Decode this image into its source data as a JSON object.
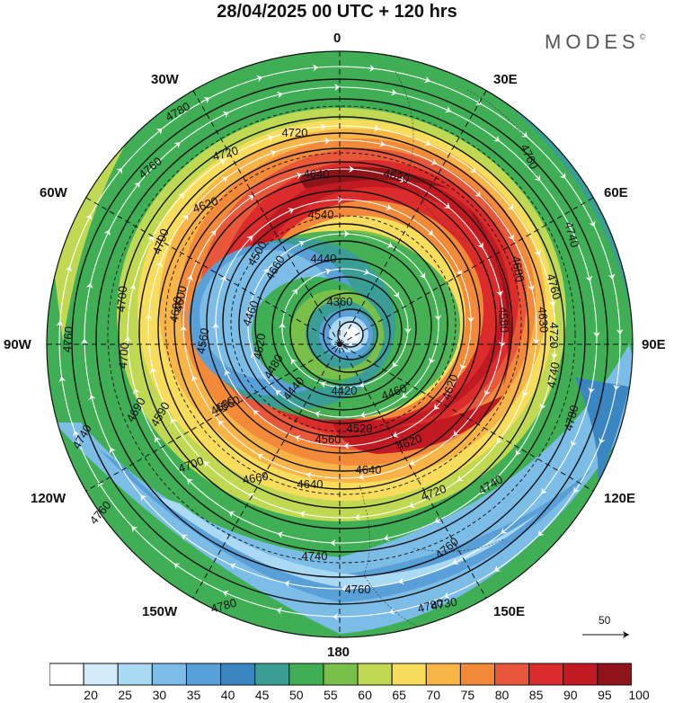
{
  "title": "28/04/2025  00 UTC  + 120 hrs",
  "brand": {
    "text": "MODES",
    "mark": "©"
  },
  "longitude_labels": {
    "n": "0",
    "ne": "30E",
    "ene": "60E",
    "e": "90E",
    "ese": "120E",
    "se": "150E",
    "s": "180",
    "sw": "150W",
    "wsw": "120W",
    "w": "90W",
    "wnw": "60W",
    "nw": "30W"
  },
  "map": {
    "projection": "polar-stereographic-south",
    "center_label": "",
    "contour_labels": [
      "4780",
      "4760",
      "4720",
      "4720",
      "4640",
      "4620",
      "4540",
      "4700",
      "4500",
      "4440",
      "4680",
      "4760",
      "4700",
      "4600",
      "4460",
      "4360",
      "4580",
      "4630",
      "4720",
      "4760",
      "4700",
      "4560",
      "4520",
      "4480",
      "4440",
      "4420",
      "4460",
      "4620",
      "4740",
      "4590",
      "4580",
      "4560",
      "4520",
      "4620",
      "4780",
      "4740",
      "4700",
      "4640",
      "4660",
      "4640",
      "4720",
      "4740",
      "4760",
      "4740",
      "4760",
      "4780",
      "4760",
      "4780",
      "4760",
      "4740",
      "4560",
      "4600",
      "4660",
      "4620",
      "4690",
      "4730"
    ],
    "colors": {
      "c20": "#ffffff",
      "c25": "#d4ecfa",
      "c30": "#a9d9f3",
      "c35": "#7cbde8",
      "c40": "#5aa0d8",
      "c45": "#3a86c3",
      "c50": "#3a9e96",
      "c55": "#3fae55",
      "c60": "#79c04a",
      "c65": "#c1d952",
      "c70": "#f7dd5b",
      "c75": "#f8b447",
      "c80": "#f28a39",
      "c85": "#e8573a",
      "c90": "#db2c2b",
      "c95": "#c11a22",
      "c100": "#8f1419"
    }
  },
  "reference_vector": {
    "value": "50"
  },
  "colorbar": {
    "ticks": [
      "20",
      "25",
      "30",
      "35",
      "40",
      "45",
      "50",
      "55",
      "60",
      "65",
      "70",
      "75",
      "80",
      "85",
      "90",
      "95",
      "100"
    ],
    "colors": [
      "#ffffff",
      "#d4ecfa",
      "#a9d9f3",
      "#7cbde8",
      "#5aa0d8",
      "#3a86c3",
      "#3a9e96",
      "#3fae55",
      "#79c04a",
      "#c1d952",
      "#f7dd5b",
      "#f8b447",
      "#f28a39",
      "#e8573a",
      "#db2c2b",
      "#c11a22",
      "#8f1419"
    ]
  }
}
